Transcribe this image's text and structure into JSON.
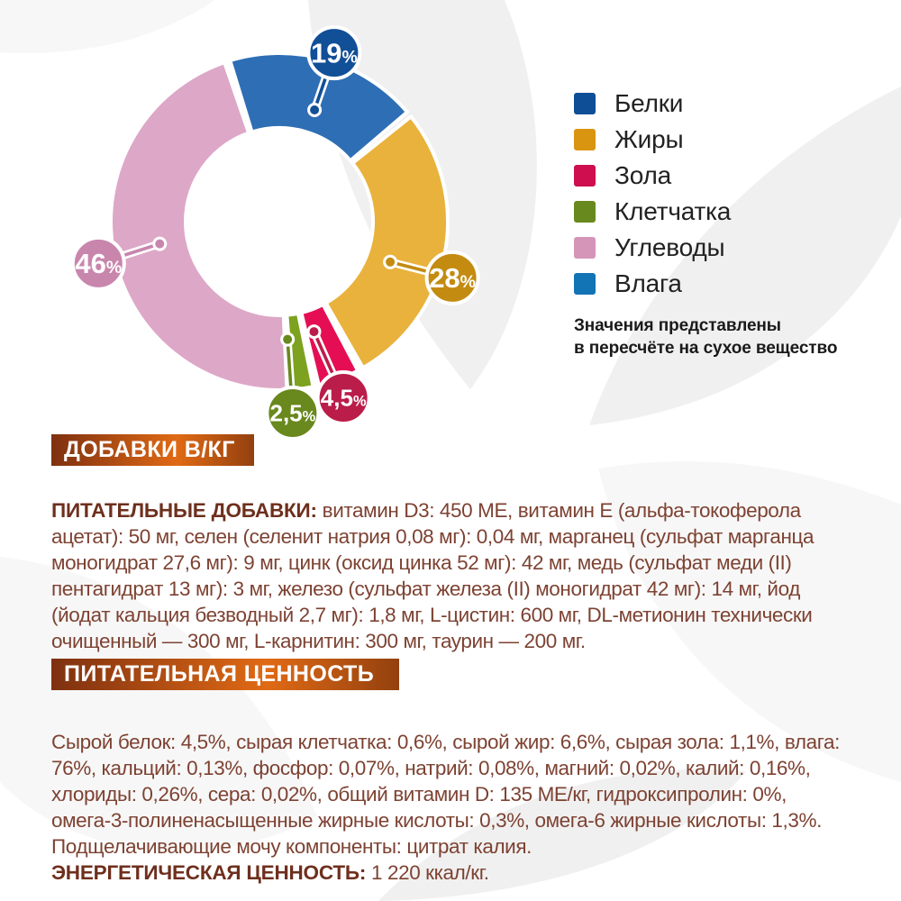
{
  "theme": {
    "background": "#ffffff",
    "swirl_color": "#f0f0f0",
    "swirl_color_light": "#f7f7f7",
    "header_gradient_left": "#7e3010",
    "header_gradient_mid": "#e06a15",
    "header_gradient_right": "#93400f",
    "header_text_color": "#ffffff",
    "body_text_color": "#7d4232",
    "lead_text_color": "#6e2f1d",
    "note_text_color": "#1a1a1a",
    "legend_text_color": "#222222"
  },
  "chart_data": {
    "type": "donut",
    "unit": "%",
    "start_angle_deg": -18,
    "segment_gap_deg": 2,
    "segments": [
      {
        "name": "Белки",
        "value": 19,
        "label": "19%",
        "segment_color": "#2e6eb5",
        "callout_color": "#114f97"
      },
      {
        "name": "Жиры",
        "value": 28,
        "label": "28%",
        "segment_color": "#e9b23c",
        "callout_color": "#c38b10"
      },
      {
        "name": "Зола",
        "value": 4.5,
        "label": "4,5%",
        "segment_color": "#e50e54",
        "callout_color": "#ba1d4a"
      },
      {
        "name": "Клетчатка",
        "value": 2.5,
        "label": "2,5%",
        "segment_color": "#7ca21f",
        "callout_color": "#69881d"
      },
      {
        "name": "Углеводы",
        "value": 46,
        "label": "46%",
        "segment_color": "#dda7c7",
        "callout_color": "#c986ad"
      }
    ],
    "legend": [
      {
        "label": "Белки",
        "color": "#0e4e96"
      },
      {
        "label": "Жиры",
        "color": "#d99510"
      },
      {
        "label": "Зола",
        "color": "#ce0e4e"
      },
      {
        "label": "Клетчатка",
        "color": "#68891d"
      },
      {
        "label": "Углеводы",
        "color": "#d595b9"
      },
      {
        "label": "Влага",
        "color": "#1273b5"
      }
    ],
    "note_line1": "Значения представлены",
    "note_line2": "в пересчёте на сухое вещество"
  },
  "sections": {
    "additives": {
      "title": "ДОБАВКИ В/КГ",
      "lead": "ПИТАТЕЛЬНЫЕ ДОБАВКИ:",
      "text": " витамин D3: 450 МЕ, витамин Е (альфа-токоферола ацетат): 50 мг, селен (селенит натрия 0,08 мг): 0,04 мг, марганец (сульфат марганца моногидрат 27,6 мг): 9 мг, цинк (оксид цинка 52 мг): 42 мг, медь (сульфат меди (II) пентагидрат 13 мг): 3 мг, железо (сульфат железа (II) моногидрат 42 мг): 14 мг, йод (йодат кальция безводный 2,7 мг): 1,8 мг, L-цистин: 600 мг, DL-метионин технически очищенный — 300 мг, L-карнитин: 300 мг, таурин — 200 мг."
    },
    "nutrition": {
      "title": "ПИТАТЕЛЬНАЯ ЦЕННОСТЬ",
      "text": "Сырой белок: 4,5%, сырая клетчатка: 0,6%, сырой жир: 6,6%, сырая зола: 1,1%, влага: 76%, кальций: 0,13%, фосфор: 0,07%, натрий: 0,08%, магний: 0,02%, калий: 0,16%, хлориды: 0,26%, сера: 0,02%, общий витамин D: 135 МЕ/кг, гидроксипролин: 0%, омега-3-полиненасыщенные жирные кислоты: 0,3%, омега-6 жирные кислоты: 1,3%. Подщелачивающие мочу компоненты: цитрат калия.",
      "energy_lead": "ЭНЕРГЕТИЧЕСКАЯ ЦЕННОСТЬ:",
      "energy_value": " 1 220 ккал/кг."
    }
  }
}
